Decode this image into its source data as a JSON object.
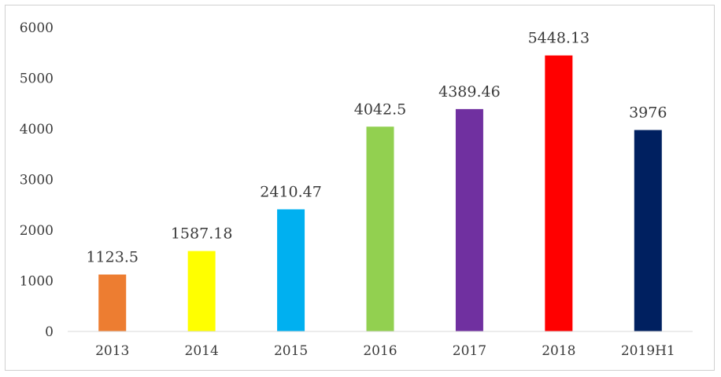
{
  "chart_data": {
    "type": "bar",
    "title": "",
    "xlabel": "",
    "ylabel": "",
    "categories": [
      "2013",
      "2014",
      "2015",
      "2016",
      "2017",
      "2018",
      "2019H1"
    ],
    "values": [
      1123.5,
      1587.18,
      2410.47,
      4042.5,
      4389.46,
      5448.13,
      3976
    ],
    "value_labels": [
      "1123.5",
      "1587.18",
      "2410.47",
      "4042.5",
      "4389.46",
      "5448.13",
      "3976"
    ],
    "colors": [
      "#ED7D31",
      "#FFFF00",
      "#00B0F0",
      "#92D050",
      "#7030A0",
      "#FF0000",
      "#002060"
    ],
    "ylim": [
      0,
      6000
    ],
    "yticks": [
      0,
      1000,
      2000,
      3000,
      4000,
      5000,
      6000
    ],
    "grid": false,
    "legend": "none"
  }
}
